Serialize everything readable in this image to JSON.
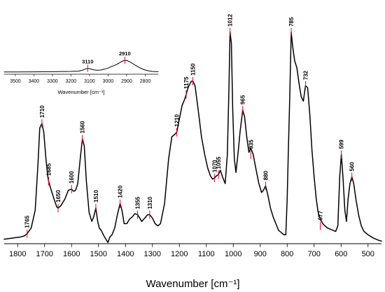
{
  "chart_data": [
    {
      "type": "line",
      "xlabel": "Wavenumber [cm⁻¹]",
      "xlim": [
        1850,
        450
      ],
      "x_ticks": [
        "1800",
        "1700",
        "1600",
        "1500",
        "1400",
        "1300",
        "1200",
        "1100",
        "1000",
        "900",
        "800",
        "700",
        "600",
        "500"
      ],
      "ylim": [
        0,
        1
      ],
      "y_axis_visible": false,
      "line_color": "#000000",
      "marker_color": "#e8001c",
      "series": [
        {
          "x": [
            1850,
            1820,
            1790,
            1775,
            1765,
            1750,
            1735,
            1725,
            1718,
            1710,
            1703,
            1695,
            1688,
            1685,
            1678,
            1665,
            1655,
            1650,
            1640,
            1625,
            1612,
            1600,
            1592,
            1585,
            1577,
            1568,
            1560,
            1553,
            1545,
            1535,
            1525,
            1518,
            1510,
            1503,
            1497,
            1490,
            1480,
            1465,
            1458,
            1450,
            1440,
            1430,
            1420,
            1413,
            1405,
            1395,
            1385,
            1375,
            1365,
            1355,
            1347,
            1340,
            1332,
            1325,
            1318,
            1310,
            1300,
            1290,
            1280,
            1270,
            1255,
            1240,
            1228,
            1218,
            1210,
            1200,
            1190,
            1180,
            1175,
            1168,
            1160,
            1155,
            1150,
            1142,
            1130,
            1118,
            1106,
            1095,
            1085,
            1077,
            1070,
            1062,
            1055,
            1048,
            1040,
            1030,
            1022,
            1016,
            1012,
            1007,
            1002,
            996,
            990,
            982,
            975,
            968,
            965,
            958,
            950,
            942,
            935,
            926,
            915,
            905,
            895,
            888,
            880,
            872,
            862,
            852,
            842,
            832,
            822,
            812,
            805,
            800,
            796,
            790,
            785,
            779,
            772,
            764,
            756,
            748,
            740,
            732,
            724,
            716,
            708,
            700,
            692,
            685,
            677,
            668,
            660,
            650,
            640,
            630,
            620,
            612,
            605,
            599,
            593,
            586,
            580,
            574,
            567,
            560,
            553,
            545,
            535,
            525,
            515,
            500,
            480,
            460,
            450
          ],
          "y": [
            0.02,
            0.025,
            0.03,
            0.035,
            0.045,
            0.07,
            0.15,
            0.35,
            0.52,
            0.54,
            0.5,
            0.38,
            0.3,
            0.28,
            0.25,
            0.2,
            0.165,
            0.16,
            0.17,
            0.2,
            0.24,
            0.245,
            0.235,
            0.24,
            0.27,
            0.38,
            0.47,
            0.44,
            0.28,
            0.14,
            0.1,
            0.12,
            0.16,
            0.1,
            0.07,
            0.06,
            0.035,
            0.005,
            0.03,
            0.04,
            0.07,
            0.13,
            0.18,
            0.15,
            0.09,
            0.09,
            0.11,
            0.12,
            0.135,
            0.13,
            0.115,
            0.1,
            0.11,
            0.12,
            0.13,
            0.13,
            0.115,
            0.09,
            0.08,
            0.09,
            0.18,
            0.38,
            0.48,
            0.49,
            0.5,
            0.56,
            0.62,
            0.65,
            0.67,
            0.7,
            0.72,
            0.73,
            0.73,
            0.71,
            0.6,
            0.48,
            0.4,
            0.34,
            0.305,
            0.29,
            0.295,
            0.305,
            0.31,
            0.33,
            0.3,
            0.27,
            0.4,
            0.7,
            0.95,
            0.9,
            0.6,
            0.38,
            0.32,
            0.41,
            0.5,
            0.57,
            0.6,
            0.57,
            0.48,
            0.41,
            0.43,
            0.4,
            0.33,
            0.27,
            0.23,
            0.24,
            0.26,
            0.22,
            0.16,
            0.12,
            0.09,
            0.06,
            0.05,
            0.04,
            0.04,
            0.2,
            0.4,
            0.68,
            0.95,
            0.88,
            0.82,
            0.79,
            0.72,
            0.66,
            0.64,
            0.71,
            0.7,
            0.58,
            0.42,
            0.3,
            0.2,
            0.14,
            0.11,
            0.09,
            0.08,
            0.07,
            0.065,
            0.06,
            0.055,
            0.08,
            0.3,
            0.4,
            0.3,
            0.15,
            0.1,
            0.2,
            0.27,
            0.3,
            0.27,
            0.2,
            0.13,
            0.08,
            0.055,
            0.04,
            0.025,
            0.015,
            0.012
          ]
        }
      ],
      "peak_labels": [
        {
          "x": 1765,
          "y": 0.045,
          "label": "1765"
        },
        {
          "x": 1710,
          "y": 0.54,
          "label": "1710"
        },
        {
          "x": 1685,
          "y": 0.28,
          "label": "1685"
        },
        {
          "x": 1650,
          "y": 0.16,
          "label": "1650"
        },
        {
          "x": 1600,
          "y": 0.245,
          "label": "1600"
        },
        {
          "x": 1560,
          "y": 0.47,
          "label": "1560"
        },
        {
          "x": 1510,
          "y": 0.16,
          "label": "1510"
        },
        {
          "x": 1420,
          "y": 0.18,
          "label": "1420"
        },
        {
          "x": 1355,
          "y": 0.13,
          "label": "1355"
        },
        {
          "x": 1310,
          "y": 0.13,
          "label": "1310"
        },
        {
          "x": 1210,
          "y": 0.5,
          "label": "1210"
        },
        {
          "x": 1175,
          "y": 0.67,
          "label": "1175"
        },
        {
          "x": 1150,
          "y": 0.73,
          "label": "1150"
        },
        {
          "x": 1070,
          "y": 0.295,
          "label": "1070"
        },
        {
          "x": 1055,
          "y": 0.31,
          "label": "1055"
        },
        {
          "x": 1012,
          "y": 0.95,
          "label": "1012"
        },
        {
          "x": 965,
          "y": 0.6,
          "label": "965"
        },
        {
          "x": 935,
          "y": 0.4,
          "label": "935"
        },
        {
          "x": 880,
          "y": 0.26,
          "label": "880"
        },
        {
          "x": 785,
          "y": 0.95,
          "label": "785"
        },
        {
          "x": 732,
          "y": 0.71,
          "label": "732"
        },
        {
          "x": 677,
          "y": 0.08,
          "label": "677"
        },
        {
          "x": 599,
          "y": 0.4,
          "label": "599"
        },
        {
          "x": 560,
          "y": 0.3,
          "label": "560"
        }
      ]
    },
    {
      "type": "line",
      "xlabel": "Wavenumber [cm⁻¹]",
      "xlim": [
        3560,
        2730
      ],
      "x_ticks": [
        "3500",
        "3400",
        "3300",
        "3200",
        "3100",
        "3000",
        "2900",
        "2800"
      ],
      "ylim": [
        0,
        1
      ],
      "y_axis_visible": false,
      "line_color": "#000000",
      "marker_color": "#e8001c",
      "series": [
        {
          "x": [
            3560,
            3500,
            3400,
            3300,
            3200,
            3160,
            3140,
            3125,
            3110,
            3095,
            3080,
            3060,
            3040,
            3020,
            3000,
            2980,
            2960,
            2940,
            2925,
            2910,
            2895,
            2880,
            2860,
            2840,
            2820,
            2800,
            2780,
            2760,
            2740,
            2730
          ],
          "y": [
            0.08,
            0.08,
            0.085,
            0.09,
            0.1,
            0.11,
            0.14,
            0.18,
            0.21,
            0.19,
            0.16,
            0.14,
            0.15,
            0.18,
            0.22,
            0.28,
            0.33,
            0.4,
            0.46,
            0.5,
            0.48,
            0.43,
            0.35,
            0.27,
            0.2,
            0.15,
            0.12,
            0.1,
            0.09,
            0.09
          ]
        }
      ],
      "peak_labels": [
        {
          "x": 3110,
          "y": 0.21,
          "label": "3110"
        },
        {
          "x": 2910,
          "y": 0.5,
          "label": "2910"
        }
      ]
    }
  ]
}
